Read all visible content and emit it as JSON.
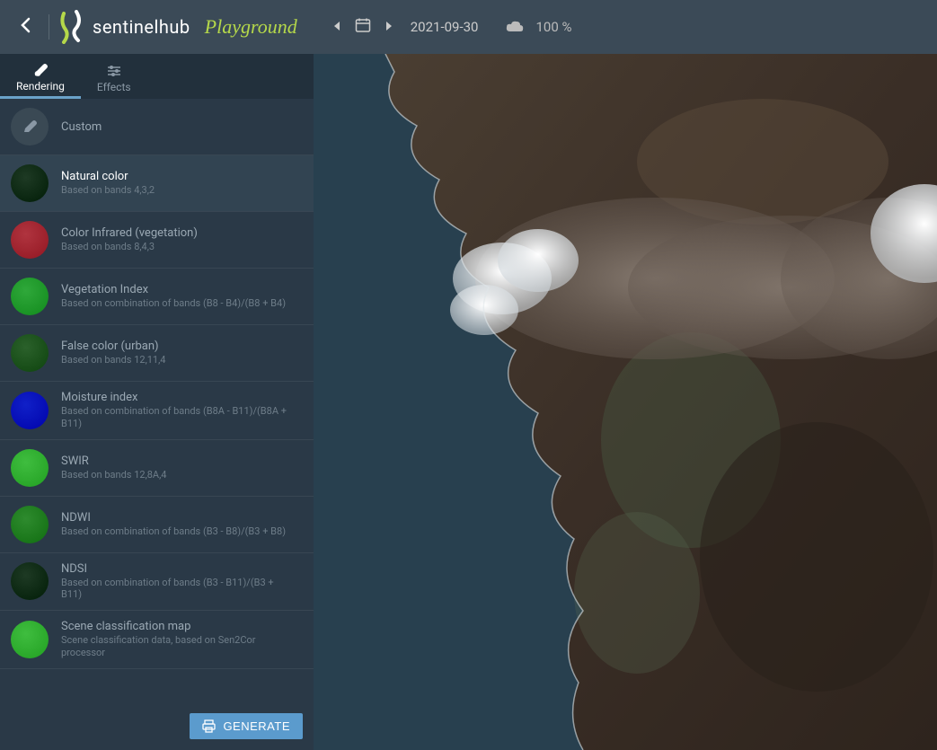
{
  "header": {
    "brand_main": "sentinelhub",
    "brand_sub": "Playground",
    "date": "2021-09-30",
    "cloud_pct": "100 %"
  },
  "tabs": {
    "rendering": "Rendering",
    "effects": "Effects"
  },
  "presets": [
    {
      "key": "custom",
      "title": "Custom",
      "desc": "",
      "thumb_color": "#3a4954",
      "thumb_type": "custom",
      "selected": false
    },
    {
      "key": "natural",
      "title": "Natural color",
      "desc": "Based on bands 4,3,2",
      "thumb_color": "#1e3a24",
      "thumb_type": "img",
      "selected": true
    },
    {
      "key": "cir",
      "title": "Color Infrared (vegetation)",
      "desc": "Based on bands 8,4,3",
      "thumb_color": "#b0343f",
      "thumb_type": "img",
      "selected": false
    },
    {
      "key": "vegidx",
      "title": "Vegetation Index",
      "desc": "Based on combination of bands (B8 - B4)/(B8 + B4)",
      "thumb_color": "#2fa83a",
      "thumb_type": "img",
      "selected": false
    },
    {
      "key": "urban",
      "title": "False color (urban)",
      "desc": "Based on bands 12,11,4",
      "thumb_color": "#2b612b",
      "thumb_type": "img",
      "selected": false
    },
    {
      "key": "moist",
      "title": "Moisture index",
      "desc": "Based on combination of bands (B8A - B11)/(B8A + B11)",
      "thumb_color": "#1020c8",
      "thumb_type": "img",
      "selected": false
    },
    {
      "key": "swir",
      "title": "SWIR",
      "desc": "Based on bands 12,8A,4",
      "thumb_color": "#3fbd3f",
      "thumb_type": "img",
      "selected": false
    },
    {
      "key": "ndwi",
      "title": "NDWI",
      "desc": "Based on combination of bands (B3 - B8)/(B3 + B8)",
      "thumb_color": "#2e8b2e",
      "thumb_type": "img",
      "selected": false
    },
    {
      "key": "ndsi",
      "title": "NDSI",
      "desc": "Based on combination of bands (B3 - B11)/(B3 + B11)",
      "thumb_color": "#1e3a24",
      "thumb_type": "img",
      "selected": false
    },
    {
      "key": "scl",
      "title": "Scene classification map",
      "desc": "Scene classification data, based on Sen2Cor processor",
      "thumb_color": "#3fbd3f",
      "thumb_type": "img",
      "selected": false
    }
  ],
  "generate_label": "GENERATE",
  "colors": {
    "header_bg": "#3b4a57",
    "sidebar_bg": "#2a3947",
    "accent": "#5b9bcd",
    "brand_green": "#b5d84a"
  },
  "map": {
    "ocean_color": "#243846",
    "land_color_dark": "#3a2e26",
    "land_color_mid": "#5a4a3a",
    "smoke_color": "#6b6058",
    "cloud_color": "#f2f4f6",
    "coast_stroke": "#d8dcdf"
  }
}
